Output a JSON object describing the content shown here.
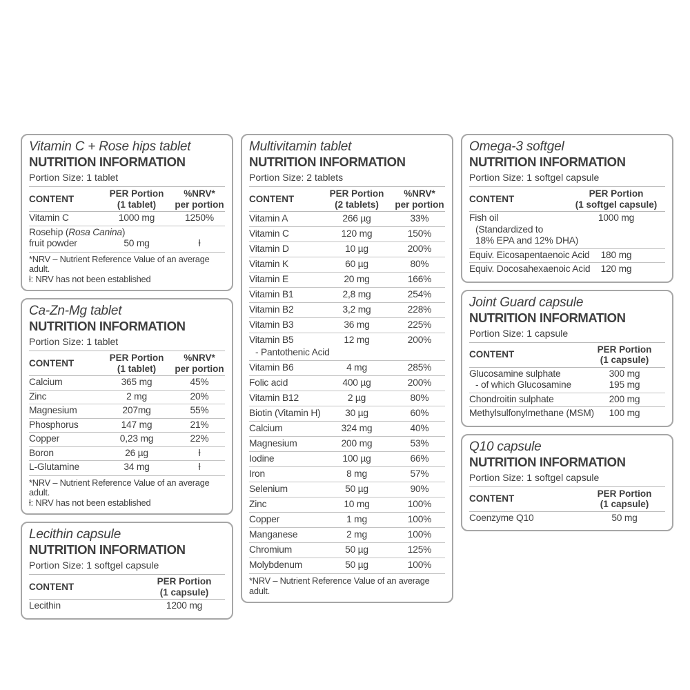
{
  "colors": {
    "text": "#3e3e3e",
    "panel_border": "#a6a6a6",
    "rule": "#bcbcbc",
    "background": "#ffffff"
  },
  "layout": {
    "columns": [
      [
        "vitamin_c",
        "ca_zn_mg",
        "lecithin"
      ],
      [
        "multivitamin"
      ],
      [
        "omega_3",
        "joint_guard",
        "q10"
      ]
    ]
  },
  "panels": {
    "vitamin_c": {
      "title": "Vitamin C + Rose hips tablet",
      "heading": "NUTRITION INFORMATION",
      "portion": "Portion Size: 1 tablet",
      "table": {
        "content_label": "CONTENT",
        "amount_header": [
          "PER Portion",
          "(1 tablet)"
        ],
        "nrv_header": [
          "%NRV*",
          "per portion"
        ]
      },
      "rows": [
        {
          "lines": [
            {
              "name": "Vitamin C",
              "amount": "1000 mg",
              "nrv": "1250%"
            }
          ]
        },
        {
          "lines": [
            {
              "name_pre": "Rosehip (",
              "name_it": "Rosa Canina",
              "name_post": ")"
            },
            {
              "name": "fruit powder",
              "amount": "50 mg",
              "nrv": "ƚ"
            }
          ]
        }
      ],
      "footnotes": [
        "*NRV – Nutrient Reference Value of an average adult.",
        "ƚ: NRV has not been established"
      ]
    },
    "ca_zn_mg": {
      "title": "Ca-Zn-Mg tablet",
      "heading": "NUTRITION INFORMATION",
      "portion": "Portion Size: 1 tablet",
      "table": {
        "content_label": "CONTENT",
        "amount_header": [
          "PER Portion",
          "(1 tablet)"
        ],
        "nrv_header": [
          "%NRV*",
          "per portion"
        ]
      },
      "rows": [
        {
          "lines": [
            {
              "name": "Calcium",
              "amount": "365 mg",
              "nrv": "45%"
            }
          ]
        },
        {
          "lines": [
            {
              "name": "Zinc",
              "amount": "2 mg",
              "nrv": "20%"
            }
          ]
        },
        {
          "lines": [
            {
              "name": "Magnesium",
              "amount": "207mg",
              "nrv": "55%"
            }
          ]
        },
        {
          "lines": [
            {
              "name": "Phosphorus",
              "amount": "147 mg",
              "nrv": "21%"
            }
          ]
        },
        {
          "lines": [
            {
              "name": "Copper",
              "amount": "0,23 mg",
              "nrv": "22%"
            }
          ]
        },
        {
          "lines": [
            {
              "name": "Boron",
              "amount": "26 µg",
              "nrv": "ƚ"
            }
          ]
        },
        {
          "lines": [
            {
              "name": "L-Glutamine",
              "amount": "34 mg",
              "nrv": "ƚ"
            }
          ]
        }
      ],
      "footnotes": [
        "*NRV – Nutrient Reference Value of an average adult.",
        "ƚ: NRV has not been established"
      ]
    },
    "lecithin": {
      "title": "Lecithin capsule",
      "heading": "NUTRITION INFORMATION",
      "portion": "Portion Size: 1 softgel capsule",
      "table": {
        "content_label": "CONTENT",
        "amount_header": [
          "PER Portion",
          "(1 capsule)"
        ]
      },
      "rows": [
        {
          "lines": [
            {
              "name": "Lecithin",
              "amount": "1200 mg"
            }
          ]
        }
      ],
      "footnotes": []
    },
    "multivitamin": {
      "title": "Multivitamin tablet",
      "heading": "NUTRITION INFORMATION",
      "portion": "Portion Size: 2 tablets",
      "table": {
        "content_label": "CONTENT",
        "amount_header": [
          "PER Portion",
          "(2 tablets)"
        ],
        "nrv_header": [
          "%NRV*",
          "per portion"
        ]
      },
      "rows": [
        {
          "lines": [
            {
              "name": "Vitamin A",
              "amount": "266 µg",
              "nrv": "33%"
            }
          ]
        },
        {
          "lines": [
            {
              "name": "Vitamin C",
              "amount": "120 mg",
              "nrv": "150%"
            }
          ]
        },
        {
          "lines": [
            {
              "name": "Vitamin D",
              "amount": "10 µg",
              "nrv": "200%"
            }
          ]
        },
        {
          "lines": [
            {
              "name": "Vitamin K",
              "amount": "60 µg",
              "nrv": "80%"
            }
          ]
        },
        {
          "lines": [
            {
              "name": "Vitamin E",
              "amount": "20 mg",
              "nrv": "166%"
            }
          ]
        },
        {
          "lines": [
            {
              "name": "Vitamin B1",
              "amount": "2,8 mg",
              "nrv": "254%"
            }
          ]
        },
        {
          "lines": [
            {
              "name": "Vitamin B2",
              "amount": "3,2 mg",
              "nrv": "228%"
            }
          ]
        },
        {
          "lines": [
            {
              "name": "Vitamin B3",
              "amount": "36 mg",
              "nrv": "225%"
            }
          ]
        },
        {
          "lines": [
            {
              "name": "Vitamin B5",
              "amount": "12 mg",
              "nrv": "200%"
            },
            {
              "name": "- Pantothenic Acid",
              "indent": true
            }
          ]
        },
        {
          "lines": [
            {
              "name": "Vitamin B6",
              "amount": "4 mg",
              "nrv": "285%"
            }
          ]
        },
        {
          "lines": [
            {
              "name": "Folic acid",
              "amount": "400 µg",
              "nrv": "200%"
            }
          ]
        },
        {
          "lines": [
            {
              "name": "Vitamin B12",
              "amount": "2 µg",
              "nrv": "80%"
            }
          ]
        },
        {
          "lines": [
            {
              "name": "Biotin (Vitamin H)",
              "amount": "30 µg",
              "nrv": "60%"
            }
          ]
        },
        {
          "lines": [
            {
              "name": "Calcium",
              "amount": "324 mg",
              "nrv": "40%"
            }
          ]
        },
        {
          "lines": [
            {
              "name": "Magnesium",
              "amount": "200 mg",
              "nrv": "53%"
            }
          ]
        },
        {
          "lines": [
            {
              "name": "Iodine",
              "amount": "100 µg",
              "nrv": "66%"
            }
          ]
        },
        {
          "lines": [
            {
              "name": "Iron",
              "amount": "8 mg",
              "nrv": "57%"
            }
          ]
        },
        {
          "lines": [
            {
              "name": "Selenium",
              "amount": "50 µg",
              "nrv": "90%"
            }
          ]
        },
        {
          "lines": [
            {
              "name": "Zinc",
              "amount": "10 mg",
              "nrv": "100%"
            }
          ]
        },
        {
          "lines": [
            {
              "name": "Copper",
              "amount": "1 mg",
              "nrv": "100%"
            }
          ]
        },
        {
          "lines": [
            {
              "name": "Manganese",
              "amount": "2 mg",
              "nrv": "100%"
            }
          ]
        },
        {
          "lines": [
            {
              "name": "Chromium",
              "amount": "50 µg",
              "nrv": "125%"
            }
          ]
        },
        {
          "lines": [
            {
              "name": "Molybdenum",
              "amount": "50 µg",
              "nrv": "100%"
            }
          ]
        }
      ],
      "footnotes": [
        "*NRV – Nutrient Reference Value of an average adult."
      ]
    },
    "omega_3": {
      "title": "Omega-3 softgel",
      "heading": "NUTRITION INFORMATION",
      "portion": "Portion Size: 1 softgel capsule",
      "table": {
        "content_label": "CONTENT",
        "amount_header": [
          "PER Portion",
          "(1 softgel capsule)"
        ]
      },
      "rows": [
        {
          "lines": [
            {
              "name": "Fish oil",
              "amount": "1000 mg"
            },
            {
              "name": "(Standardized to",
              "indent": true
            },
            {
              "name": "18% EPA and 12% DHA)",
              "indent": true
            }
          ]
        },
        {
          "lines": [
            {
              "name": "Equiv. Eicosapentaenoic Acid",
              "amount": "180 mg"
            }
          ]
        },
        {
          "lines": [
            {
              "name": "Equiv. Docosahexaenoic Acid",
              "amount": "120 mg"
            }
          ]
        }
      ],
      "footnotes": []
    },
    "joint_guard": {
      "title": "Joint Guard capsule",
      "heading": "NUTRITION INFORMATION",
      "portion": "Portion Size: 1 capsule",
      "table": {
        "content_label": "CONTENT",
        "amount_header": [
          "PER Portion",
          "(1 capsule)"
        ]
      },
      "rows": [
        {
          "lines": [
            {
              "name": "Glucosamine sulphate",
              "amount": "300 mg"
            },
            {
              "name": "- of which Glucosamine",
              "amount": "195 mg",
              "indent": true
            }
          ]
        },
        {
          "lines": [
            {
              "name": "Chondroitin sulphate",
              "amount": "200 mg"
            }
          ]
        },
        {
          "lines": [
            {
              "name": "Methylsulfonylmethane (MSM)",
              "amount": "100 mg"
            }
          ]
        }
      ],
      "footnotes": []
    },
    "q10": {
      "title": "Q10 capsule",
      "heading": "NUTRITION INFORMATION",
      "portion": "Portion Size: 1 softgel capsule",
      "table": {
        "content_label": "CONTENT",
        "amount_header": [
          "PER Portion",
          "(1 capsule)"
        ]
      },
      "rows": [
        {
          "lines": [
            {
              "name": "Coenzyme Q10",
              "amount": "50 mg"
            }
          ]
        }
      ],
      "footnotes": []
    }
  }
}
